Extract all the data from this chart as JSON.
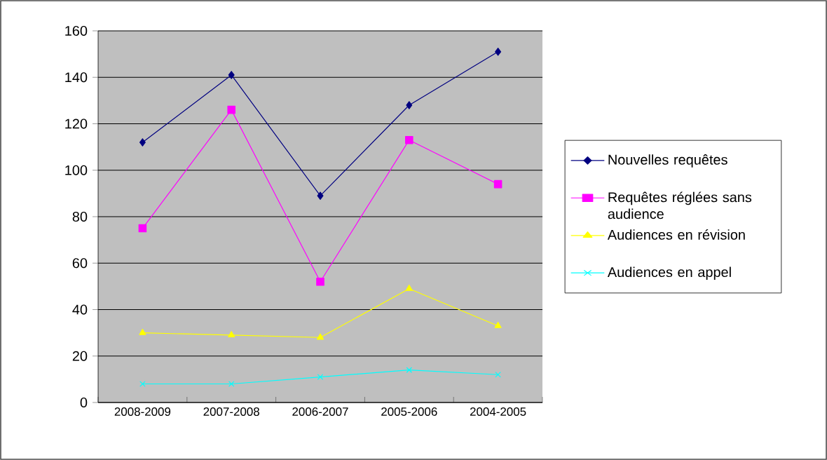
{
  "chart_data": {
    "type": "line",
    "categories": [
      "2008-2009",
      "2007-2008",
      "2006-2007",
      "2005-2006",
      "2004-2005"
    ],
    "series": [
      {
        "name": "Nouvelles requêtes",
        "color": "#000080",
        "marker": "diamond",
        "values": [
          112,
          141,
          89,
          128,
          151
        ]
      },
      {
        "name": "Requêtes réglées sans audience",
        "color": "#ff00ff",
        "marker": "square",
        "values": [
          75,
          126,
          52,
          113,
          94
        ]
      },
      {
        "name": "Audiences en révision",
        "color": "#ffff00",
        "marker": "triangle",
        "values": [
          30,
          29,
          28,
          49,
          33
        ]
      },
      {
        "name": "Audiences en appel",
        "color": "#00ffff",
        "marker": "cross",
        "values": [
          8,
          8,
          11,
          14,
          12
        ]
      }
    ],
    "ylim": [
      0,
      160
    ],
    "yticks": [
      0,
      20,
      40,
      60,
      80,
      100,
      120,
      140,
      160
    ],
    "grid": "y",
    "legend": "right",
    "line_style": "solid"
  }
}
